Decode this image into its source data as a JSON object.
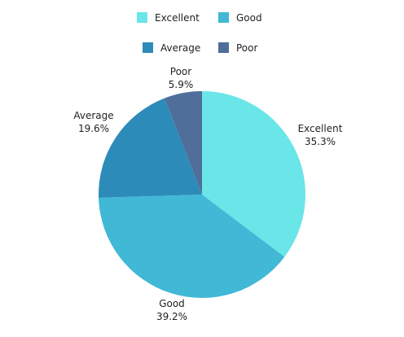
{
  "chart_data": {
    "type": "pie",
    "title": "",
    "legend_placement": "top",
    "categories": [
      "Excellent",
      "Good",
      "Average",
      "Poor"
    ],
    "values": [
      35.3,
      39.2,
      19.6,
      5.9
    ],
    "value_labels": [
      "35.3%",
      "39.2%",
      "19.6%",
      "5.9%"
    ],
    "colors": [
      "#6ae5e8",
      "#41b8d5",
      "#2d8bba",
      "#506e9a"
    ],
    "start_angle_deg": 0,
    "direction": "clockwise"
  }
}
